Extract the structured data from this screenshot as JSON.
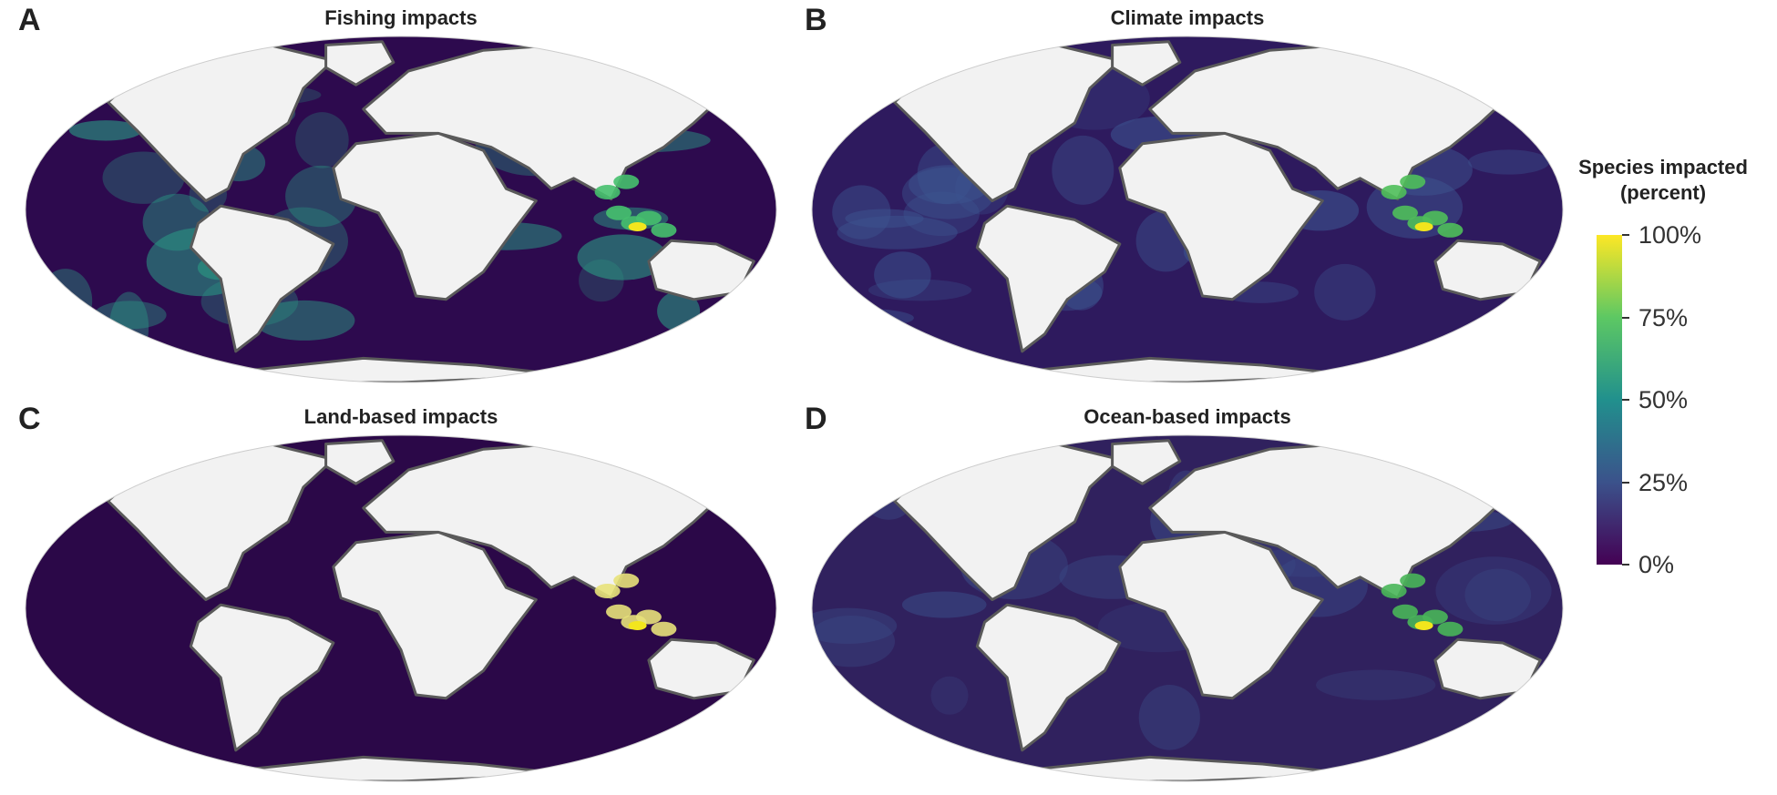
{
  "panels": [
    {
      "letter": "A",
      "title": "Fishing impacts",
      "ocean_color": "#2d0a4e",
      "coast_color": "#46c06e",
      "blob_color": "#2a9c85",
      "hot_color": "#f3e61d"
    },
    {
      "letter": "B",
      "title": "Climate impacts",
      "ocean_color": "#2e1a5e",
      "coast_color": "#4fbf5a",
      "blob_color": "#3c5590",
      "hot_color": "#f1e51d"
    },
    {
      "letter": "C",
      "title": "Land-based impacts",
      "ocean_color": "#2b0848",
      "coast_color": "#e8e27a",
      "blob_color": "#2b0848",
      "hot_color": "#f3e61d"
    },
    {
      "letter": "D",
      "title": "Ocean-based impacts",
      "ocean_color": "#30215e",
      "coast_color": "#49b659",
      "blob_color": "#3a4a86",
      "hot_color": "#f3e61d"
    }
  ],
  "legend": {
    "title_line1": "Species impacted",
    "title_line2": "(percent)",
    "ticks": [
      {
        "label": "100%",
        "value": 100
      },
      {
        "label": "75%",
        "value": 75
      },
      {
        "label": "50%",
        "value": 50
      },
      {
        "label": "25%",
        "value": 25
      },
      {
        "label": "0%",
        "value": 0
      }
    ],
    "colors": {
      "low": "#440154",
      "q1": "#3b528b",
      "mid": "#21908d",
      "q3": "#5dc863",
      "high": "#fde725"
    }
  },
  "colors": {
    "land": "#f2f2f2",
    "coastline": "#5a5a5a"
  }
}
